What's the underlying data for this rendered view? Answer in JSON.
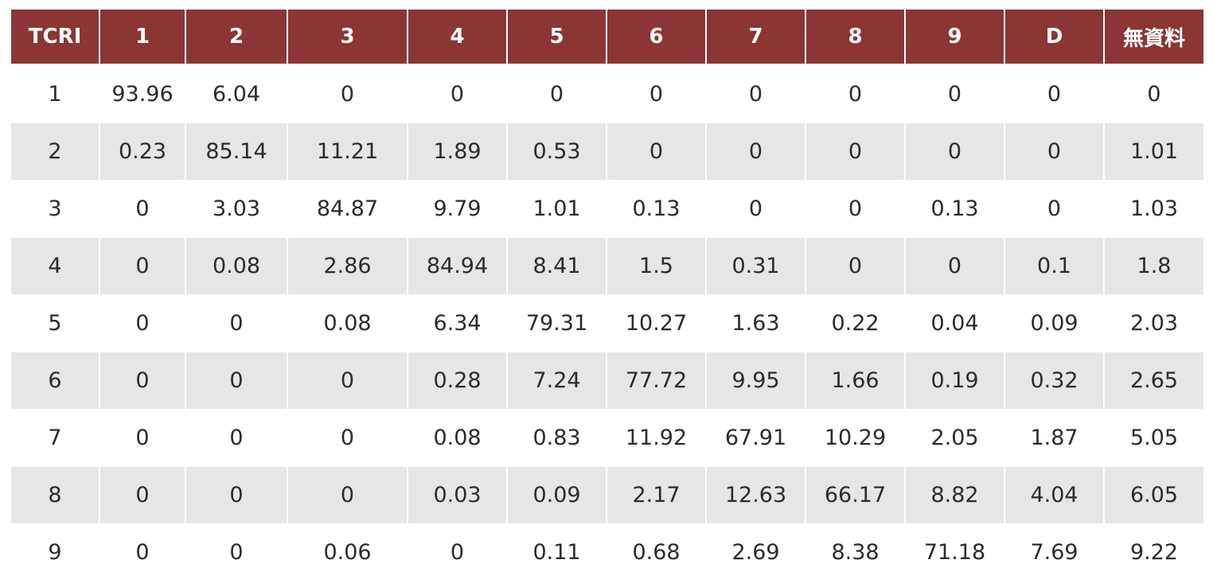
{
  "chart_data": {
    "type": "table",
    "columns": [
      "TCRI",
      "1",
      "2",
      "3",
      "4",
      "5",
      "6",
      "7",
      "8",
      "9",
      "D",
      "無資料"
    ],
    "rows": [
      [
        "1",
        "93.96",
        "6.04",
        "0",
        "0",
        "0",
        "0",
        "0",
        "0",
        "0",
        "0",
        "0"
      ],
      [
        "2",
        "0.23",
        "85.14",
        "11.21",
        "1.89",
        "0.53",
        "0",
        "0",
        "0",
        "0",
        "0",
        "1.01"
      ],
      [
        "3",
        "0",
        "3.03",
        "84.87",
        "9.79",
        "1.01",
        "0.13",
        "0",
        "0",
        "0.13",
        "0",
        "1.03"
      ],
      [
        "4",
        "0",
        "0.08",
        "2.86",
        "84.94",
        "8.41",
        "1.5",
        "0.31",
        "0",
        "0",
        "0.1",
        "1.8"
      ],
      [
        "5",
        "0",
        "0",
        "0.08",
        "6.34",
        "79.31",
        "10.27",
        "1.63",
        "0.22",
        "0.04",
        "0.09",
        "2.03"
      ],
      [
        "6",
        "0",
        "0",
        "0",
        "0.28",
        "7.24",
        "77.72",
        "9.95",
        "1.66",
        "0.19",
        "0.32",
        "2.65"
      ],
      [
        "7",
        "0",
        "0",
        "0",
        "0.08",
        "0.83",
        "11.92",
        "67.91",
        "10.29",
        "2.05",
        "1.87",
        "5.05"
      ],
      [
        "8",
        "0",
        "0",
        "0",
        "0.03",
        "0.09",
        "2.17",
        "12.63",
        "66.17",
        "8.82",
        "4.04",
        "6.05"
      ],
      [
        "9",
        "0",
        "0",
        "0.06",
        "0",
        "0.11",
        "0.68",
        "2.69",
        "8.38",
        "71.18",
        "7.69",
        "9.22"
      ]
    ]
  },
  "colors": {
    "header_background": "#8b3535",
    "header_text": "#ffffff",
    "stripe_background": "#e6e6e6",
    "body_text": "#2b2b2b"
  }
}
